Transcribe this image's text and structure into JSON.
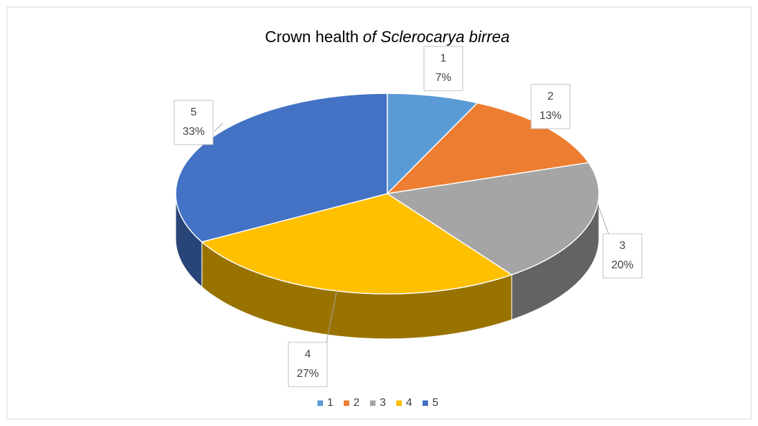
{
  "chart_data": {
    "type": "pie",
    "title": [
      "Crown health",
      "of Sclerocarya birrea"
    ],
    "categories": [
      "1",
      "2",
      "3",
      "4",
      "5"
    ],
    "values": [
      7,
      13,
      20,
      27,
      33
    ],
    "value_labels": [
      "7%",
      "13%",
      "20%",
      "27%",
      "33%"
    ],
    "colors": [
      "#5b9bd5",
      "#ed7d31",
      "#a5a5a5",
      "#ffc000",
      "#4472c4"
    ],
    "legend": "bottom"
  }
}
